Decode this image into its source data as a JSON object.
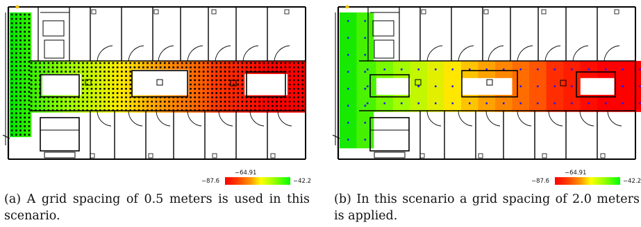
{
  "figure": {
    "panels": [
      {
        "id": "a",
        "grid_spacing_m": 0.5,
        "colorbar": {
          "min_label": "−87.6",
          "mid_label": "−64.91",
          "max_label": "−42.2"
        },
        "caption": "(a) A grid spacing of 0.5 meters is used in this scenario."
      },
      {
        "id": "b",
        "grid_spacing_m": 2.0,
        "colorbar": {
          "min_label": "−87.6",
          "mid_label": "−64.91",
          "max_label": "−42.2"
        },
        "caption": "(b) In this scenario a grid spacing of 2.0 meters is applied."
      }
    ],
    "colors": {
      "low": "#ff0000",
      "mid": "#ffff00",
      "high": "#00ff00",
      "grid_marker_a": "#000000",
      "grid_marker_b": "#1a1aff",
      "wall": "#000000"
    }
  }
}
